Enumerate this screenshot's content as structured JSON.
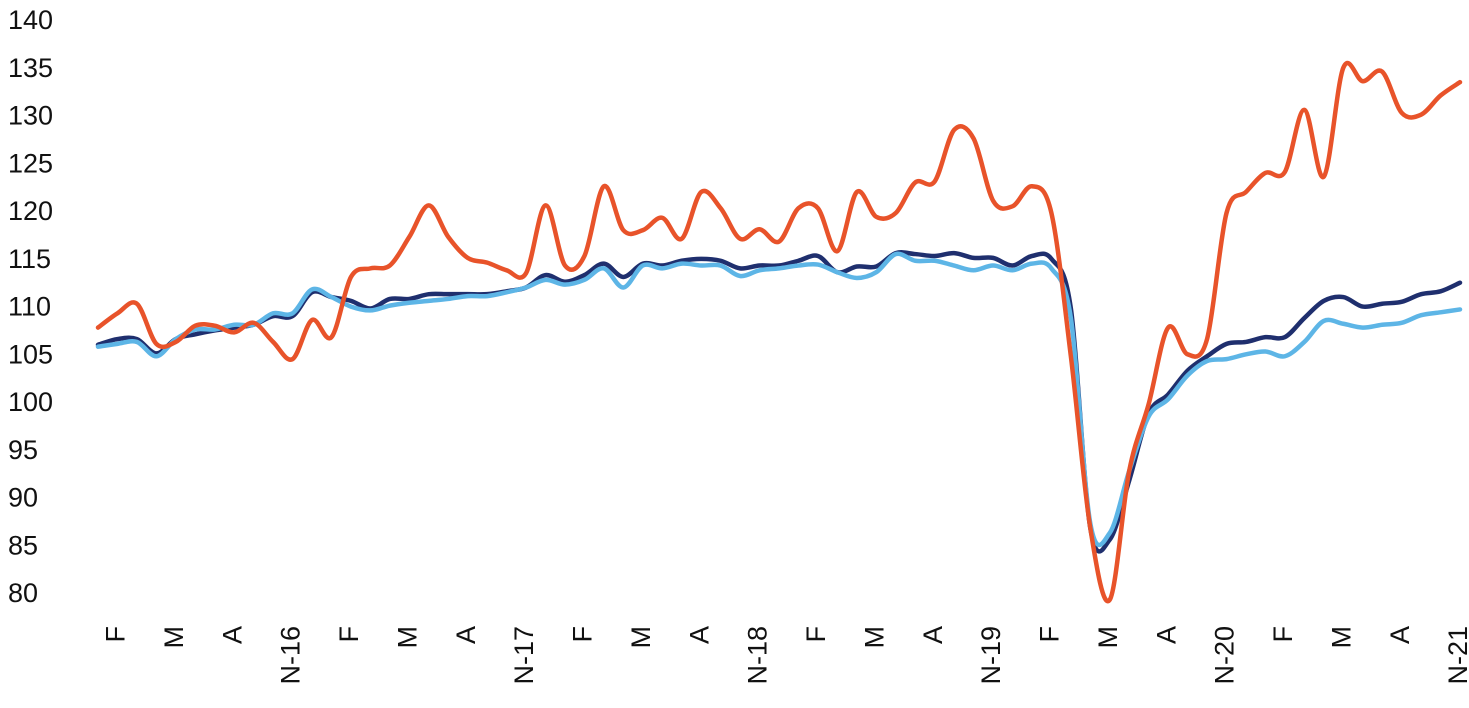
{
  "chart_data": {
    "type": "line",
    "categories": [
      null,
      "F",
      null,
      null,
      "M",
      null,
      null,
      "A",
      null,
      null,
      "N-16",
      null,
      null,
      "F",
      null,
      null,
      "M",
      null,
      null,
      "A",
      null,
      null,
      "N-17",
      null,
      null,
      "F",
      null,
      null,
      "M",
      null,
      null,
      "A",
      null,
      null,
      "N-18",
      null,
      null,
      "F",
      null,
      null,
      "M",
      null,
      null,
      "A",
      null,
      null,
      "N-19",
      null,
      null,
      "F",
      null,
      null,
      "M",
      null,
      null,
      "A",
      null,
      null,
      "N-20",
      null,
      null,
      "F",
      null,
      null,
      "M",
      null,
      null,
      "A",
      null,
      null,
      "N-21"
    ],
    "series": [
      {
        "color": "#1f2f6e",
        "values": [
          106.2,
          106.8,
          106.8,
          105.3,
          106.8,
          107.3,
          107.7,
          108,
          108.3,
          109.2,
          109.2,
          111.7,
          111.2,
          110.8,
          110,
          111,
          111,
          111.5,
          111.5,
          111.5,
          111.5,
          111.8,
          112.2,
          113.5,
          112.8,
          113.5,
          114.7,
          113.3,
          114.7,
          114.5,
          115,
          115.2,
          115,
          114.2,
          114.5,
          114.5,
          115,
          115.5,
          113.8,
          114.4,
          114.4,
          115.8,
          115.7,
          115.5,
          115.8,
          115.3,
          115.3,
          114.5,
          115.5,
          115.2,
          110,
          87,
          85.8,
          92,
          99,
          101,
          103.5,
          105,
          106.3,
          106.5,
          107,
          107,
          109,
          110.8,
          111.2,
          110.2,
          110.5,
          110.7,
          111.5,
          111.8,
          112.7
        ]
      },
      {
        "color": "#5db5e6",
        "values": [
          106,
          106.3,
          106.5,
          105,
          106.8,
          107.8,
          107.8,
          108.3,
          108.3,
          109.5,
          109.5,
          112,
          111.2,
          110.2,
          109.8,
          110.3,
          110.6,
          110.8,
          111,
          111.3,
          111.3,
          111.7,
          112.2,
          113,
          112.5,
          113,
          114.2,
          112.2,
          114.5,
          114.2,
          114.7,
          114.5,
          114.5,
          113.4,
          114,
          114.2,
          114.5,
          114.6,
          113.8,
          113.2,
          113.8,
          115.7,
          115,
          115,
          114.5,
          114,
          114.5,
          114,
          114.7,
          114.2,
          109,
          87.5,
          86.5,
          93,
          98.7,
          100.5,
          103,
          104.5,
          104.7,
          105.2,
          105.5,
          105,
          106.5,
          108.7,
          108.4,
          108,
          108.3,
          108.5,
          109.3,
          109.6,
          109.9
        ]
      },
      {
        "color": "#e8532a",
        "values": [
          108,
          109.5,
          110.5,
          106.3,
          106.5,
          108.2,
          108.2,
          107.5,
          108.5,
          106.5,
          104.7,
          108.8,
          107,
          113.3,
          114.2,
          114.5,
          117.5,
          120.8,
          117.5,
          115.3,
          114.8,
          114,
          113.7,
          120.8,
          114.5,
          115.5,
          122.8,
          118.2,
          118.2,
          119.5,
          117.3,
          122.2,
          120.5,
          117.3,
          118.3,
          117,
          120.5,
          120.5,
          116,
          122.2,
          119.6,
          120,
          123.2,
          123.3,
          128.7,
          127.8,
          121.3,
          120.7,
          122.8,
          120,
          105,
          87,
          79.5,
          93,
          100,
          108,
          105.2,
          106.8,
          120,
          122.2,
          124.2,
          124.3,
          130.8,
          123.8,
          135.2,
          133.8,
          134.8,
          130.5,
          130.3,
          132.3,
          133.7
        ]
      }
    ],
    "ylim": [
      80,
      140
    ],
    "yticks": [
      80,
      85,
      90,
      95,
      100,
      105,
      110,
      115,
      120,
      125,
      130,
      135,
      140
    ],
    "grid": false
  }
}
